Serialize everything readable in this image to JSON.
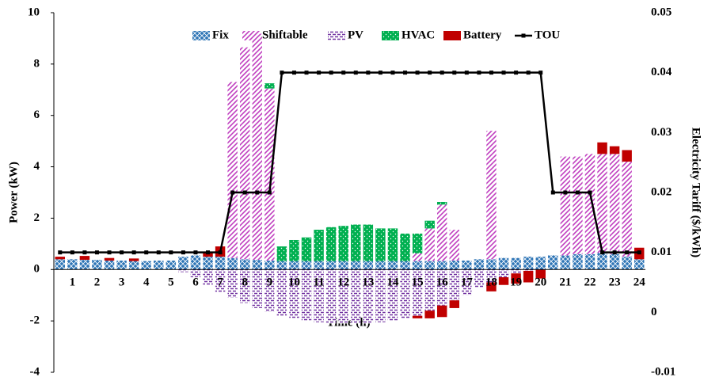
{
  "chart_data": {
    "type": "bar",
    "x_label": "Time (h)",
    "y_label": "Power (kW)",
    "y2_label": "Electricity Tariff ($/kWh)",
    "categories": [
      null,
      "1",
      null,
      "2",
      null,
      "3",
      null,
      "4",
      null,
      "5",
      null,
      "6",
      null,
      "7",
      null,
      "8",
      null,
      "9",
      null,
      "10",
      null,
      "11",
      null,
      "12",
      null,
      "13",
      null,
      "14",
      null,
      "15",
      null,
      "16",
      null,
      "17",
      null,
      "18",
      null,
      "19",
      null,
      "20",
      null,
      "21",
      null,
      "22",
      null,
      "23",
      null,
      "24"
    ],
    "ylim": [
      -4,
      10
    ],
    "yticks": [
      -4,
      -2,
      0,
      2,
      4,
      6,
      8,
      10
    ],
    "y2lim": [
      -0.01,
      0.05
    ],
    "y2ticks": [
      -0.01,
      0,
      0.01,
      0.02,
      0.03,
      0.04,
      0.05
    ],
    "legend": "top",
    "series": [
      {
        "name": "Fix",
        "color": "#2e75b6",
        "values": [
          0.4,
          0.4,
          0.38,
          0.38,
          0.35,
          0.35,
          0.33,
          0.33,
          0.35,
          0.35,
          0.5,
          0.55,
          0.5,
          0.5,
          0.45,
          0.4,
          0.38,
          0.35,
          0.33,
          0.33,
          0.33,
          0.33,
          0.33,
          0.33,
          0.33,
          0.33,
          0.33,
          0.33,
          0.33,
          0.33,
          0.33,
          0.33,
          0.35,
          0.35,
          0.4,
          0.4,
          0.45,
          0.45,
          0.5,
          0.5,
          0.55,
          0.55,
          0.6,
          0.6,
          0.65,
          0.6,
          0.5,
          0.4
        ]
      },
      {
        "name": "Shiftable",
        "color": "#c03fc0",
        "values": [
          0,
          0,
          0,
          0,
          0,
          0,
          0,
          0,
          0,
          0,
          0,
          0,
          0,
          0,
          6.85,
          8.25,
          8.8,
          6.7,
          0,
          0,
          0,
          0,
          0,
          0,
          0,
          0,
          0,
          0,
          0,
          0.3,
          1.27,
          2.2,
          1.2,
          0,
          0,
          5.0,
          0,
          0,
          0,
          0,
          0,
          3.85,
          3.8,
          3.9,
          3.85,
          3.9,
          3.7,
          0
        ]
      },
      {
        "name": "PV",
        "color": "#7030a0",
        "values": [
          0,
          0,
          0,
          0,
          0,
          0,
          0,
          0,
          0,
          0,
          -0.1,
          -0.3,
          -0.6,
          -0.9,
          -1.1,
          -1.3,
          -1.5,
          -1.65,
          -1.8,
          -1.9,
          -2.0,
          -2.05,
          -2.1,
          -2.1,
          -2.1,
          -2.1,
          -2.05,
          -2.0,
          -1.9,
          -1.8,
          -1.6,
          -1.4,
          -1.2,
          -1.0,
          -0.7,
          -0.5,
          -0.3,
          -0.15,
          -0.05,
          0,
          0,
          0,
          0,
          0,
          0,
          0,
          0,
          0
        ]
      },
      {
        "name": "HVAC",
        "color": "#00b050",
        "values": [
          0,
          0,
          0,
          0,
          0,
          0,
          0,
          0,
          0,
          0,
          0,
          0,
          0,
          0,
          0,
          0,
          0,
          0.2,
          0.57,
          0.82,
          0.92,
          1.22,
          1.32,
          1.37,
          1.42,
          1.42,
          1.27,
          1.27,
          1.07,
          0.77,
          0.3,
          0.1,
          0,
          0,
          0,
          0,
          0,
          0,
          0,
          0,
          0,
          0,
          0,
          0,
          0,
          0,
          0,
          0
        ]
      },
      {
        "name": "Battery",
        "color": "#c00000",
        "values": [
          0.1,
          0,
          0.15,
          0,
          0.1,
          0,
          0.1,
          0,
          0,
          0,
          0,
          0,
          0.2,
          0.4,
          0,
          0,
          0,
          0,
          0,
          0,
          0,
          0,
          0,
          0,
          0,
          0,
          0,
          0,
          0,
          -0.1,
          -0.3,
          -0.45,
          -0.3,
          0,
          0,
          -0.35,
          -0.3,
          -0.4,
          -0.45,
          -0.35,
          0,
          0,
          0,
          0,
          0.45,
          0.3,
          0.45,
          0.45
        ]
      },
      {
        "name": "TOU",
        "color": "#000000",
        "type": "line",
        "axis": "y2",
        "values": [
          0.01,
          0.01,
          0.01,
          0.01,
          0.01,
          0.01,
          0.01,
          0.01,
          0.01,
          0.01,
          0.01,
          0.01,
          0.01,
          0.01,
          0.02,
          0.02,
          0.02,
          0.02,
          0.04,
          0.04,
          0.04,
          0.04,
          0.04,
          0.04,
          0.04,
          0.04,
          0.04,
          0.04,
          0.04,
          0.04,
          0.04,
          0.04,
          0.04,
          0.04,
          0.04,
          0.04,
          0.04,
          0.04,
          0.04,
          0.04,
          0.02,
          0.02,
          0.02,
          0.02,
          0.01,
          0.01,
          0.01,
          0.01
        ]
      }
    ]
  }
}
